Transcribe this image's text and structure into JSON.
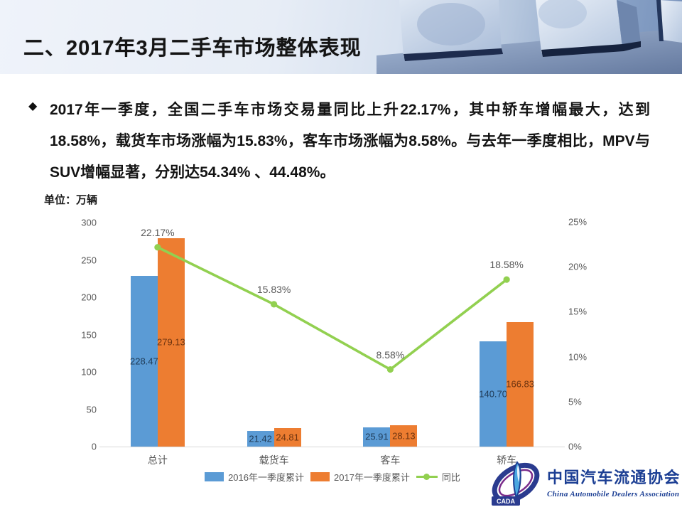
{
  "header": {
    "title": "二、2017年3月二手车市场整体表现"
  },
  "bullet": {
    "marker": "◆",
    "text": "2017年一季度，全国二手车市场交易量同比上升22.17%，其中轿车增幅最大，达到18.58%，载货车市场涨幅为15.83%，客车市场涨幅为8.58%。与去年一季度相比，MPV与SUV增幅显著，分别达54.34% 、44.48%。"
  },
  "chart_data": {
    "type": "bar+line combo",
    "categories": [
      "总计",
      "载货车",
      "客车",
      "轿车"
    ],
    "series": [
      {
        "name": "2016年一季度累计",
        "type": "bar",
        "color": "#5B9BD5",
        "label_color": "#1f3b57",
        "values": [
          228.47,
          21.42,
          25.91,
          140.7
        ]
      },
      {
        "name": "2017年一季度累计",
        "type": "bar",
        "color": "#ED7D31",
        "label_color": "#6e3410",
        "values": [
          279.13,
          24.81,
          28.13,
          166.83
        ]
      },
      {
        "name": "同比",
        "type": "line",
        "color": "#92D050",
        "label_color": "#595959",
        "values": [
          22.17,
          15.83,
          8.58,
          18.58
        ]
      }
    ],
    "ylabel": "单位：万辆",
    "left_axis": {
      "min": 0,
      "max": 300,
      "step": 50
    },
    "right_axis": {
      "min": 0,
      "max": 25,
      "step": 5,
      "suffix": "%"
    },
    "grid": false,
    "legend_position": "bottom"
  },
  "logo": {
    "cada": "CADA",
    "name_cn": "中国汽车流通协会",
    "name_en": "China Automobile Dealers Association"
  },
  "palette": {
    "bar_blue": "#5B9BD5",
    "bar_orange": "#ED7D31",
    "line_green": "#92D050",
    "axis_text": "#595959",
    "logo_blue": "#1c3f94",
    "header_blue": "#7590ba"
  }
}
